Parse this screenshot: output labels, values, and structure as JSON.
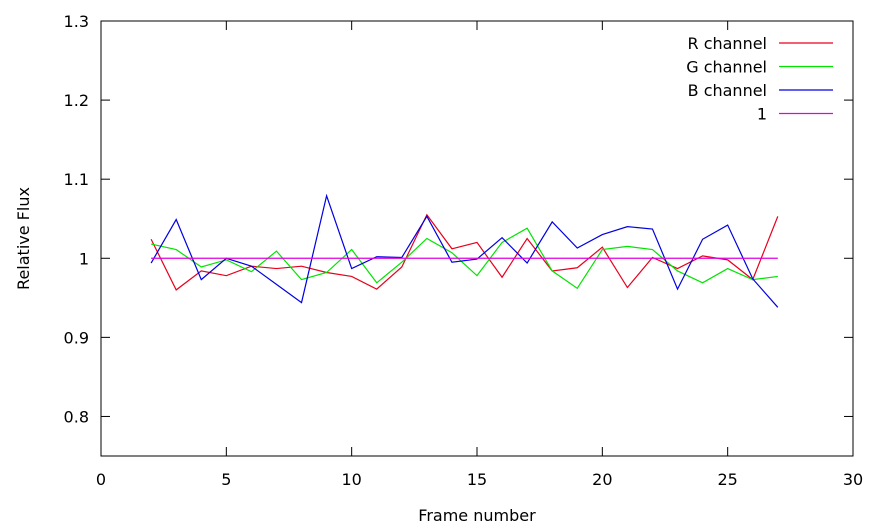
{
  "chart_data": {
    "type": "line",
    "title": "",
    "xlabel": "Frame number",
    "ylabel": "Relative Flux",
    "xlim": [
      0,
      30
    ],
    "ylim": [
      0.75,
      1.3
    ],
    "xticks": [
      0,
      5,
      10,
      15,
      20,
      25,
      30
    ],
    "xtick_labels": [
      "0",
      "5",
      "10",
      "15",
      "20",
      "25",
      "30"
    ],
    "yticks": [
      0.8,
      0.9,
      1.0,
      1.1,
      1.2,
      1.3
    ],
    "ytick_labels": [
      "0.8",
      "0.9",
      "1",
      "1.1",
      "1.2",
      "1.3"
    ],
    "grid": false,
    "legend_position": "top-right",
    "x": [
      2,
      3,
      4,
      5,
      6,
      7,
      8,
      9,
      10,
      11,
      12,
      13,
      14,
      15,
      16,
      17,
      18,
      19,
      20,
      21,
      22,
      23,
      24,
      25,
      26,
      27
    ],
    "series": [
      {
        "name": "R channel",
        "color": "#e8001c",
        "values": [
          1.024,
          0.96,
          0.984,
          0.978,
          0.99,
          0.987,
          0.99,
          0.982,
          0.977,
          0.961,
          0.989,
          1.055,
          1.012,
          1.02,
          0.976,
          1.025,
          0.984,
          0.988,
          1.014,
          0.963,
          1.001,
          0.987,
          1.003,
          0.998,
          0.973,
          1.053
        ]
      },
      {
        "name": "G channel",
        "color": "#00e400",
        "values": [
          1.018,
          1.011,
          0.989,
          0.998,
          0.983,
          1.009,
          0.973,
          0.982,
          1.011,
          0.969,
          0.995,
          1.025,
          1.007,
          0.978,
          1.02,
          1.038,
          0.984,
          0.962,
          1.011,
          1.015,
          1.011,
          0.984,
          0.969,
          0.987,
          0.973,
          0.977
        ]
      },
      {
        "name": "B channel",
        "color": "#0000e0",
        "values": [
          0.994,
          1.049,
          0.973,
          1.0,
          0.99,
          0.967,
          0.944,
          1.079,
          0.987,
          1.002,
          1.001,
          1.053,
          0.995,
          0.999,
          1.026,
          0.994,
          1.046,
          1.013,
          1.03,
          1.04,
          1.037,
          0.961,
          1.024,
          1.042,
          0.974,
          0.938
        ]
      },
      {
        "name": "1",
        "color": "#e000e0",
        "values": [
          1,
          1,
          1,
          1,
          1,
          1,
          1,
          1,
          1,
          1,
          1,
          1,
          1,
          1,
          1,
          1,
          1,
          1,
          1,
          1,
          1,
          1,
          1,
          1,
          1,
          1
        ]
      }
    ]
  }
}
